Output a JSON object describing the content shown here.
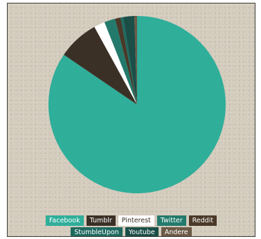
{
  "chart_data": {
    "type": "pie",
    "title": "",
    "legend_position": "bottom",
    "slices": [
      {
        "label": "Facebook",
        "value": 84.5,
        "color": "#2fae9a",
        "text_color": "#ffffff"
      },
      {
        "label": "Tumblr",
        "value": 7.5,
        "color": "#3b3026",
        "text_color": "#ffffff"
      },
      {
        "label": "Pinterest",
        "value": 2.0,
        "color": "#ffffff",
        "text_color": "#3b3026"
      },
      {
        "label": "Twitter",
        "value": 2.0,
        "color": "#237a6c",
        "text_color": "#ffffff"
      },
      {
        "label": "Reddit",
        "value": 1.0,
        "color": "#4a3828",
        "text_color": "#ffffff"
      },
      {
        "label": "StumbleUpon",
        "value": 0.5,
        "color": "#1f6a60",
        "text_color": "#ffffff"
      },
      {
        "label": "Youtube",
        "value": 2.0,
        "color": "#1c4e48",
        "text_color": "#ffffff"
      },
      {
        "label": "Andere",
        "value": 0.5,
        "color": "#6b5a46",
        "text_color": "#ffffff"
      }
    ]
  }
}
